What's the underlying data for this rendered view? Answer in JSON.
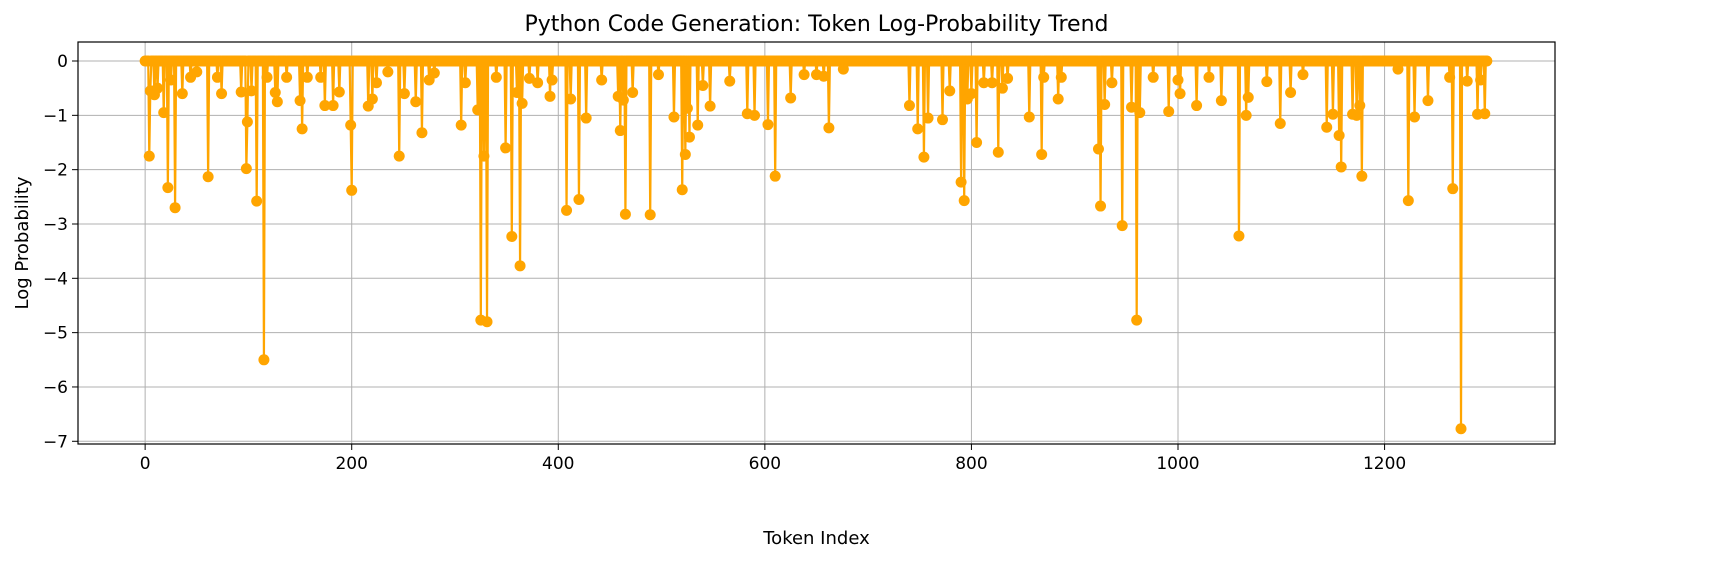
{
  "chart_data": {
    "type": "line",
    "title": "Python Code Generation: Token Log-Probability Trend",
    "xlabel": "Token Index",
    "ylabel": "Log Probability",
    "xlim": [
      -65,
      1365
    ],
    "ylim": [
      -7.05,
      0.35
    ],
    "xticks": [
      0,
      200,
      400,
      600,
      800,
      1000,
      1200
    ],
    "yticks": [
      0,
      -1,
      -2,
      -3,
      -4,
      -5,
      -6,
      -7
    ],
    "grid": true,
    "series_color": "#FFA500",
    "marker": "circle",
    "n_tokens": 1300,
    "baseline": 0,
    "points": [
      {
        "x": 4,
        "y": -1.75
      },
      {
        "x": 5,
        "y": -0.55
      },
      {
        "x": 9,
        "y": -0.62
      },
      {
        "x": 12,
        "y": -0.5
      },
      {
        "x": 18,
        "y": -0.95
      },
      {
        "x": 22,
        "y": -2.33
      },
      {
        "x": 25,
        "y": -0.35
      },
      {
        "x": 29,
        "y": -2.7
      },
      {
        "x": 36,
        "y": -0.6
      },
      {
        "x": 44,
        "y": -0.3
      },
      {
        "x": 50,
        "y": -0.2
      },
      {
        "x": 61,
        "y": -2.13
      },
      {
        "x": 70,
        "y": -0.3
      },
      {
        "x": 74,
        "y": -0.6
      },
      {
        "x": 93,
        "y": -0.57
      },
      {
        "x": 98,
        "y": -1.98
      },
      {
        "x": 99,
        "y": -1.12
      },
      {
        "x": 103,
        "y": -0.55
      },
      {
        "x": 108,
        "y": -2.58
      },
      {
        "x": 115,
        "y": -5.5
      },
      {
        "x": 118,
        "y": -0.3
      },
      {
        "x": 126,
        "y": -0.58
      },
      {
        "x": 128,
        "y": -0.75
      },
      {
        "x": 137,
        "y": -0.3
      },
      {
        "x": 150,
        "y": -0.73
      },
      {
        "x": 152,
        "y": -1.25
      },
      {
        "x": 157,
        "y": -0.3
      },
      {
        "x": 170,
        "y": -0.3
      },
      {
        "x": 174,
        "y": -0.82
      },
      {
        "x": 182,
        "y": -0.82
      },
      {
        "x": 188,
        "y": -0.57
      },
      {
        "x": 199,
        "y": -1.18
      },
      {
        "x": 200,
        "y": -2.38
      },
      {
        "x": 216,
        "y": -0.83
      },
      {
        "x": 220,
        "y": -0.7
      },
      {
        "x": 224,
        "y": -0.4
      },
      {
        "x": 235,
        "y": -0.2
      },
      {
        "x": 246,
        "y": -1.75
      },
      {
        "x": 251,
        "y": -0.6
      },
      {
        "x": 262,
        "y": -0.75
      },
      {
        "x": 268,
        "y": -1.32
      },
      {
        "x": 275,
        "y": -0.35
      },
      {
        "x": 280,
        "y": -0.22
      },
      {
        "x": 306,
        "y": -1.18
      },
      {
        "x": 310,
        "y": -0.4
      },
      {
        "x": 322,
        "y": -0.9
      },
      {
        "x": 325,
        "y": -4.77
      },
      {
        "x": 328,
        "y": -1.75
      },
      {
        "x": 331,
        "y": -4.8
      },
      {
        "x": 340,
        "y": -0.3
      },
      {
        "x": 349,
        "y": -1.6
      },
      {
        "x": 355,
        "y": -3.23
      },
      {
        "x": 360,
        "y": -0.58
      },
      {
        "x": 363,
        "y": -3.77
      },
      {
        "x": 365,
        "y": -0.78
      },
      {
        "x": 372,
        "y": -0.32
      },
      {
        "x": 380,
        "y": -0.4
      },
      {
        "x": 392,
        "y": -0.65
      },
      {
        "x": 394,
        "y": -0.35
      },
      {
        "x": 408,
        "y": -2.75
      },
      {
        "x": 412,
        "y": -0.7
      },
      {
        "x": 420,
        "y": -2.55
      },
      {
        "x": 427,
        "y": -1.05
      },
      {
        "x": 442,
        "y": -0.35
      },
      {
        "x": 458,
        "y": -0.65
      },
      {
        "x": 460,
        "y": -1.28
      },
      {
        "x": 463,
        "y": -0.72
      },
      {
        "x": 465,
        "y": -2.82
      },
      {
        "x": 472,
        "y": -0.58
      },
      {
        "x": 489,
        "y": -2.83
      },
      {
        "x": 497,
        "y": -0.25
      },
      {
        "x": 512,
        "y": -1.03
      },
      {
        "x": 520,
        "y": -2.37
      },
      {
        "x": 523,
        "y": -1.72
      },
      {
        "x": 525,
        "y": -0.87
      },
      {
        "x": 527,
        "y": -1.4
      },
      {
        "x": 535,
        "y": -1.18
      },
      {
        "x": 540,
        "y": -0.45
      },
      {
        "x": 547,
        "y": -0.83
      },
      {
        "x": 566,
        "y": -0.37
      },
      {
        "x": 583,
        "y": -0.97
      },
      {
        "x": 590,
        "y": -1.0
      },
      {
        "x": 603,
        "y": -1.17
      },
      {
        "x": 610,
        "y": -2.12
      },
      {
        "x": 625,
        "y": -0.68
      },
      {
        "x": 638,
        "y": -0.25
      },
      {
        "x": 650,
        "y": -0.25
      },
      {
        "x": 657,
        "y": -0.28
      },
      {
        "x": 662,
        "y": -1.23
      },
      {
        "x": 676,
        "y": -0.15
      },
      {
        "x": 740,
        "y": -0.82
      },
      {
        "x": 748,
        "y": -1.25
      },
      {
        "x": 754,
        "y": -1.77
      },
      {
        "x": 758,
        "y": -1.05
      },
      {
        "x": 772,
        "y": -1.08
      },
      {
        "x": 779,
        "y": -0.55
      },
      {
        "x": 790,
        "y": -2.23
      },
      {
        "x": 793,
        "y": -2.57
      },
      {
        "x": 796,
        "y": -0.7
      },
      {
        "x": 800,
        "y": -0.6
      },
      {
        "x": 805,
        "y": -1.5
      },
      {
        "x": 812,
        "y": -0.4
      },
      {
        "x": 820,
        "y": -0.4
      },
      {
        "x": 826,
        "y": -1.68
      },
      {
        "x": 830,
        "y": -0.5
      },
      {
        "x": 835,
        "y": -0.32
      },
      {
        "x": 856,
        "y": -1.03
      },
      {
        "x": 868,
        "y": -1.72
      },
      {
        "x": 870,
        "y": -0.3
      },
      {
        "x": 884,
        "y": -0.7
      },
      {
        "x": 887,
        "y": -0.3
      },
      {
        "x": 923,
        "y": -1.62
      },
      {
        "x": 925,
        "y": -2.67
      },
      {
        "x": 929,
        "y": -0.8
      },
      {
        "x": 936,
        "y": -0.4
      },
      {
        "x": 946,
        "y": -3.03
      },
      {
        "x": 955,
        "y": -0.85
      },
      {
        "x": 960,
        "y": -4.77
      },
      {
        "x": 963,
        "y": -0.95
      },
      {
        "x": 976,
        "y": -0.3
      },
      {
        "x": 991,
        "y": -0.93
      },
      {
        "x": 1000,
        "y": -0.35
      },
      {
        "x": 1002,
        "y": -0.6
      },
      {
        "x": 1018,
        "y": -0.82
      },
      {
        "x": 1030,
        "y": -0.3
      },
      {
        "x": 1042,
        "y": -0.73
      },
      {
        "x": 1059,
        "y": -3.22
      },
      {
        "x": 1066,
        "y": -1.0
      },
      {
        "x": 1068,
        "y": -0.67
      },
      {
        "x": 1086,
        "y": -0.38
      },
      {
        "x": 1099,
        "y": -1.15
      },
      {
        "x": 1109,
        "y": -0.58
      },
      {
        "x": 1121,
        "y": -0.25
      },
      {
        "x": 1144,
        "y": -1.22
      },
      {
        "x": 1150,
        "y": -0.98
      },
      {
        "x": 1156,
        "y": -1.37
      },
      {
        "x": 1158,
        "y": -1.95
      },
      {
        "x": 1169,
        "y": -0.98
      },
      {
        "x": 1173,
        "y": -1.0
      },
      {
        "x": 1176,
        "y": -0.82
      },
      {
        "x": 1178,
        "y": -2.12
      },
      {
        "x": 1213,
        "y": -0.15
      },
      {
        "x": 1223,
        "y": -2.57
      },
      {
        "x": 1229,
        "y": -1.03
      },
      {
        "x": 1242,
        "y": -0.73
      },
      {
        "x": 1263,
        "y": -0.3
      },
      {
        "x": 1266,
        "y": -2.35
      },
      {
        "x": 1274,
        "y": -6.77
      },
      {
        "x": 1280,
        "y": -0.37
      },
      {
        "x": 1290,
        "y": -0.98
      },
      {
        "x": 1293,
        "y": -0.35
      },
      {
        "x": 1297,
        "y": -0.97
      }
    ]
  }
}
